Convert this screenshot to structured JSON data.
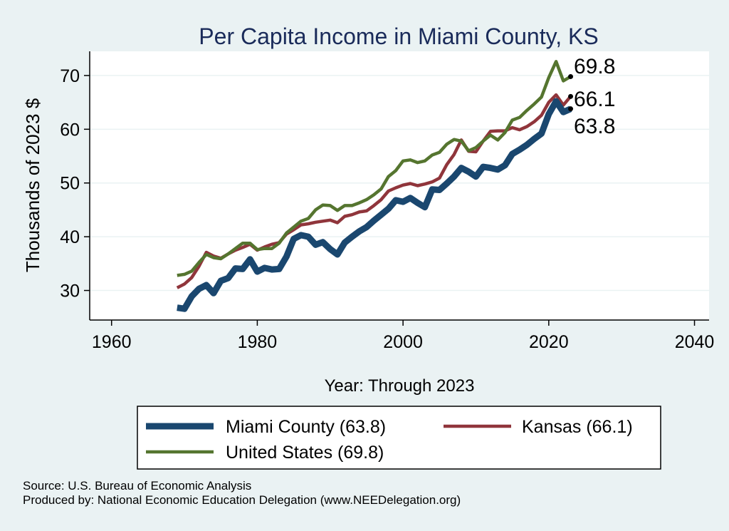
{
  "colors": {
    "background": "#eaf2f3",
    "plot_background": "#ffffff",
    "title": "#1a2b5a",
    "miami": "#1a476f",
    "kansas": "#90353b",
    "us": "#55752f"
  },
  "footer": {
    "source": "Source: U.S. Bureau of Economic Analysis",
    "produced": "Produced by: National Economic Education Delegation (www.NEEDelegation.org)"
  },
  "chart_data": {
    "type": "line",
    "title": "Per Capita Income in Miami County, KS",
    "xlabel": "Year: Through 2023",
    "ylabel": "Thousands of 2023 $",
    "xlim": [
      1957,
      2042
    ],
    "ylim": [
      24.5,
      74.5
    ],
    "xticks": [
      1960,
      1980,
      2000,
      2020,
      2040
    ],
    "yticks": [
      30,
      40,
      50,
      60,
      70
    ],
    "grid": true,
    "legend_position": "bottom",
    "x": [
      1969,
      1970,
      1971,
      1972,
      1973,
      1974,
      1975,
      1976,
      1977,
      1978,
      1979,
      1980,
      1981,
      1982,
      1983,
      1984,
      1985,
      1986,
      1987,
      1988,
      1989,
      1990,
      1991,
      1992,
      1993,
      1994,
      1995,
      1996,
      1997,
      1998,
      1999,
      2000,
      2001,
      2002,
      2003,
      2004,
      2005,
      2006,
      2007,
      2008,
      2009,
      2010,
      2011,
      2012,
      2013,
      2014,
      2015,
      2016,
      2017,
      2018,
      2019,
      2020,
      2021,
      2022,
      2023
    ],
    "series": [
      {
        "name": "Miami County (63.8)",
        "color_key": "miami",
        "end_label": "63.8",
        "values": [
          26.8,
          26.6,
          28.9,
          30.3,
          31.0,
          29.5,
          31.8,
          32.3,
          34.1,
          34.0,
          35.8,
          33.5,
          34.2,
          33.9,
          34.0,
          36.3,
          39.6,
          40.3,
          40.0,
          38.5,
          39.0,
          37.7,
          36.7,
          38.9,
          40.0,
          41.0,
          41.8,
          43.0,
          44.1,
          45.2,
          46.8,
          46.5,
          47.2,
          46.3,
          45.5,
          48.8,
          48.7,
          49.9,
          51.2,
          52.8,
          52.1,
          51.2,
          53.0,
          52.8,
          52.5,
          53.3,
          55.4,
          56.2,
          57.1,
          58.2,
          59.2,
          62.8,
          65.2,
          63.2,
          63.8
        ]
      },
      {
        "name": "Kansas (66.1)",
        "color_key": "kansas",
        "end_label": "66.1",
        "values": [
          30.5,
          31.2,
          32.4,
          34.5,
          37.1,
          36.4,
          36.0,
          36.8,
          37.5,
          38.0,
          38.6,
          37.5,
          38.1,
          38.6,
          38.9,
          40.5,
          41.3,
          42.2,
          42.4,
          42.7,
          42.9,
          43.1,
          42.6,
          43.8,
          44.1,
          44.6,
          44.8,
          45.8,
          46.9,
          48.5,
          49.1,
          49.6,
          49.9,
          49.5,
          49.8,
          50.2,
          50.9,
          53.4,
          55.3,
          58.0,
          55.9,
          55.8,
          57.8,
          59.6,
          59.7,
          59.7,
          60.3,
          59.9,
          60.5,
          61.4,
          62.6,
          65.0,
          66.4,
          64.5,
          66.1
        ]
      },
      {
        "name": "United States (69.8)",
        "color_key": "us",
        "end_label": "69.8",
        "values": [
          32.8,
          33.0,
          33.6,
          35.2,
          36.7,
          36.1,
          35.9,
          36.8,
          37.8,
          38.8,
          38.8,
          37.6,
          37.8,
          37.8,
          38.8,
          40.7,
          41.8,
          42.9,
          43.4,
          45.0,
          45.9,
          45.8,
          44.9,
          45.8,
          45.8,
          46.3,
          46.9,
          47.8,
          48.9,
          51.2,
          52.3,
          54.1,
          54.3,
          53.8,
          54.1,
          55.2,
          55.7,
          57.2,
          58.1,
          57.8,
          56.0,
          56.6,
          57.8,
          58.9,
          58.0,
          59.4,
          61.7,
          62.2,
          63.5,
          64.7,
          66.0,
          69.6,
          72.6,
          69.0,
          69.8
        ]
      }
    ]
  }
}
